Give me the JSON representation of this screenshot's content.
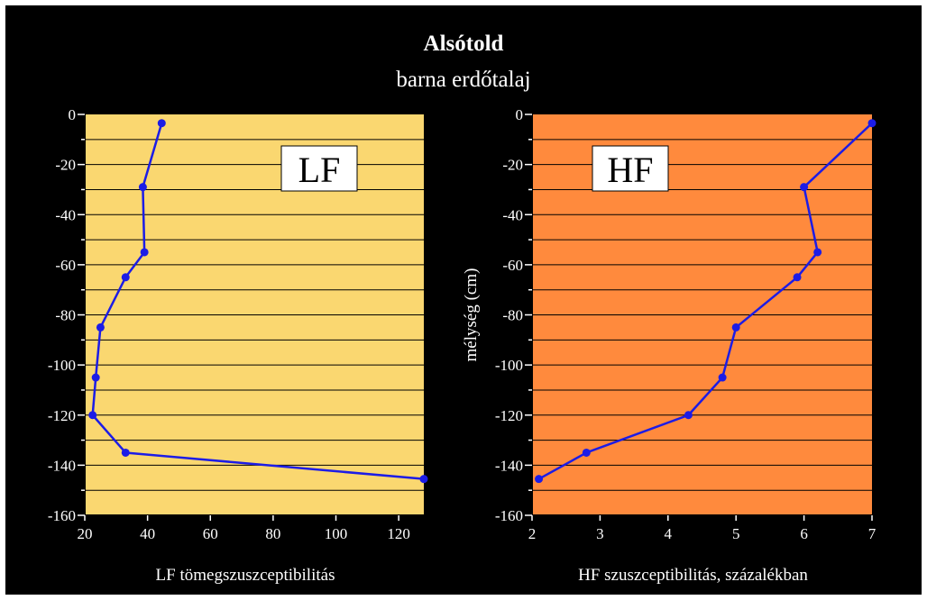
{
  "figure": {
    "title": "Alsótold",
    "subtitle": "barna erdőtalaj",
    "colors": {
      "background": "#000000",
      "series": "#1c1ce6",
      "text": "#ffffff"
    }
  },
  "chart_data": [
    {
      "type": "line",
      "badge": "LF",
      "xlabel": "LF tömegszuszceptibilitás",
      "ylabel": "",
      "xlim": [
        20,
        128
      ],
      "ylim": [
        -160,
        0
      ],
      "xticks": [
        "20",
        "40",
        "60",
        "80",
        "100",
        "120"
      ],
      "yticks": [
        "0",
        "-20",
        "-40",
        "-60",
        "-80",
        "-100",
        "-120",
        "-140",
        "-160"
      ],
      "grid": true,
      "plot_color": "#fad770",
      "line_color": "#1c1ce6",
      "points": [
        {
          "x": 44.5,
          "y": -3.5
        },
        {
          "x": 38.5,
          "y": -29
        },
        {
          "x": 39,
          "y": -55
        },
        {
          "x": 33,
          "y": -65
        },
        {
          "x": 25,
          "y": -85
        },
        {
          "x": 23.5,
          "y": -105
        },
        {
          "x": 22.5,
          "y": -120
        },
        {
          "x": 33,
          "y": -135
        },
        {
          "x": 128,
          "y": -145.5
        }
      ]
    },
    {
      "type": "line",
      "badge": "HF",
      "xlabel": "HF szuszceptibilitás, százalékban",
      "ylabel": "mélység (cm)",
      "xlim": [
        2,
        7
      ],
      "ylim": [
        -160,
        0
      ],
      "xticks": [
        "2",
        "3",
        "4",
        "5",
        "6",
        "7"
      ],
      "yticks": [
        "0",
        "-20",
        "-40",
        "-60",
        "-80",
        "-100",
        "-120",
        "-140",
        "-160"
      ],
      "grid": true,
      "plot_color": "#ff8a3d",
      "line_color": "#1c1ce6",
      "points": [
        {
          "x": 7,
          "y": -3.5
        },
        {
          "x": 6,
          "y": -29
        },
        {
          "x": 6.2,
          "y": -55
        },
        {
          "x": 5.9,
          "y": -65
        },
        {
          "x": 5,
          "y": -85
        },
        {
          "x": 4.8,
          "y": -105
        },
        {
          "x": 4.3,
          "y": -120
        },
        {
          "x": 2.8,
          "y": -135
        },
        {
          "x": 2.1,
          "y": -145.5
        }
      ]
    }
  ]
}
